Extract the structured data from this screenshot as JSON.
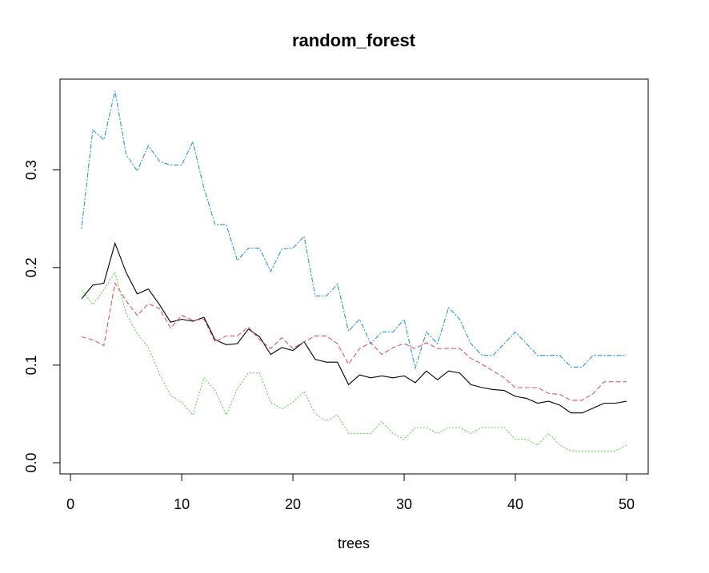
{
  "chart_data": {
    "type": "line",
    "title": "random_forest",
    "xlabel": "trees",
    "ylabel": "",
    "xlim": [
      1,
      50
    ],
    "ylim": [
      0,
      0.38
    ],
    "xticks": [
      0,
      10,
      20,
      30,
      40,
      50
    ],
    "yticks": [
      0.0,
      0.1,
      0.2,
      0.3
    ],
    "ytick_labels": [
      "0.0",
      "0.1",
      "0.2",
      "0.3"
    ],
    "grid": false,
    "x": [
      1,
      2,
      3,
      4,
      5,
      6,
      7,
      8,
      9,
      10,
      11,
      12,
      13,
      14,
      15,
      16,
      17,
      18,
      19,
      20,
      21,
      22,
      23,
      24,
      25,
      26,
      27,
      28,
      29,
      30,
      31,
      32,
      33,
      34,
      35,
      36,
      37,
      38,
      39,
      40,
      41,
      42,
      43,
      44,
      45,
      46,
      47,
      48,
      49,
      50
    ],
    "series": [
      {
        "color": "#000000",
        "dash": "solid",
        "values": [
          0.168,
          0.182,
          0.184,
          0.225,
          0.195,
          0.173,
          0.178,
          0.162,
          0.144,
          0.147,
          0.145,
          0.149,
          0.126,
          0.121,
          0.122,
          0.137,
          0.129,
          0.111,
          0.118,
          0.115,
          0.124,
          0.106,
          0.103,
          0.103,
          0.08,
          0.09,
          0.087,
          0.089,
          0.087,
          0.089,
          0.082,
          0.094,
          0.085,
          0.094,
          0.092,
          0.08,
          0.077,
          0.075,
          0.074,
          0.068,
          0.066,
          0.061,
          0.063,
          0.059,
          0.051,
          0.051,
          0.056,
          0.061,
          0.061,
          0.063
        ]
      },
      {
        "color": "#DF536B",
        "dash": "dashed",
        "values": [
          0.129,
          0.126,
          0.12,
          0.184,
          0.166,
          0.151,
          0.163,
          0.158,
          0.138,
          0.151,
          0.146,
          0.147,
          0.124,
          0.13,
          0.13,
          0.139,
          0.126,
          0.117,
          0.128,
          0.117,
          0.124,
          0.13,
          0.13,
          0.122,
          0.101,
          0.117,
          0.123,
          0.111,
          0.118,
          0.122,
          0.117,
          0.123,
          0.117,
          0.117,
          0.117,
          0.107,
          0.101,
          0.094,
          0.087,
          0.077,
          0.077,
          0.077,
          0.071,
          0.07,
          0.064,
          0.064,
          0.071,
          0.083,
          0.083,
          0.083
        ]
      },
      {
        "color": "#61D04F",
        "dash": "dotted",
        "values": [
          0.177,
          0.162,
          0.177,
          0.195,
          0.153,
          0.132,
          0.118,
          0.091,
          0.069,
          0.062,
          0.049,
          0.087,
          0.074,
          0.049,
          0.076,
          0.092,
          0.092,
          0.062,
          0.055,
          0.062,
          0.073,
          0.05,
          0.043,
          0.049,
          0.03,
          0.03,
          0.03,
          0.042,
          0.03,
          0.024,
          0.036,
          0.036,
          0.03,
          0.036,
          0.036,
          0.03,
          0.036,
          0.036,
          0.036,
          0.024,
          0.024,
          0.018,
          0.03,
          0.018,
          0.012,
          0.012,
          0.012,
          0.012,
          0.012,
          0.018
        ]
      },
      {
        "color": "#2297E6",
        "dash": "dotdash",
        "values": [
          0.24,
          0.341,
          0.331,
          0.381,
          0.316,
          0.299,
          0.325,
          0.309,
          0.305,
          0.305,
          0.329,
          0.281,
          0.244,
          0.244,
          0.207,
          0.22,
          0.22,
          0.196,
          0.219,
          0.22,
          0.232,
          0.171,
          0.171,
          0.183,
          0.135,
          0.147,
          0.122,
          0.134,
          0.134,
          0.147,
          0.097,
          0.134,
          0.122,
          0.159,
          0.147,
          0.122,
          0.11,
          0.11,
          0.122,
          0.134,
          0.122,
          0.11,
          0.11,
          0.11,
          0.098,
          0.098,
          0.11,
          0.11,
          0.11,
          0.11
        ]
      }
    ]
  }
}
